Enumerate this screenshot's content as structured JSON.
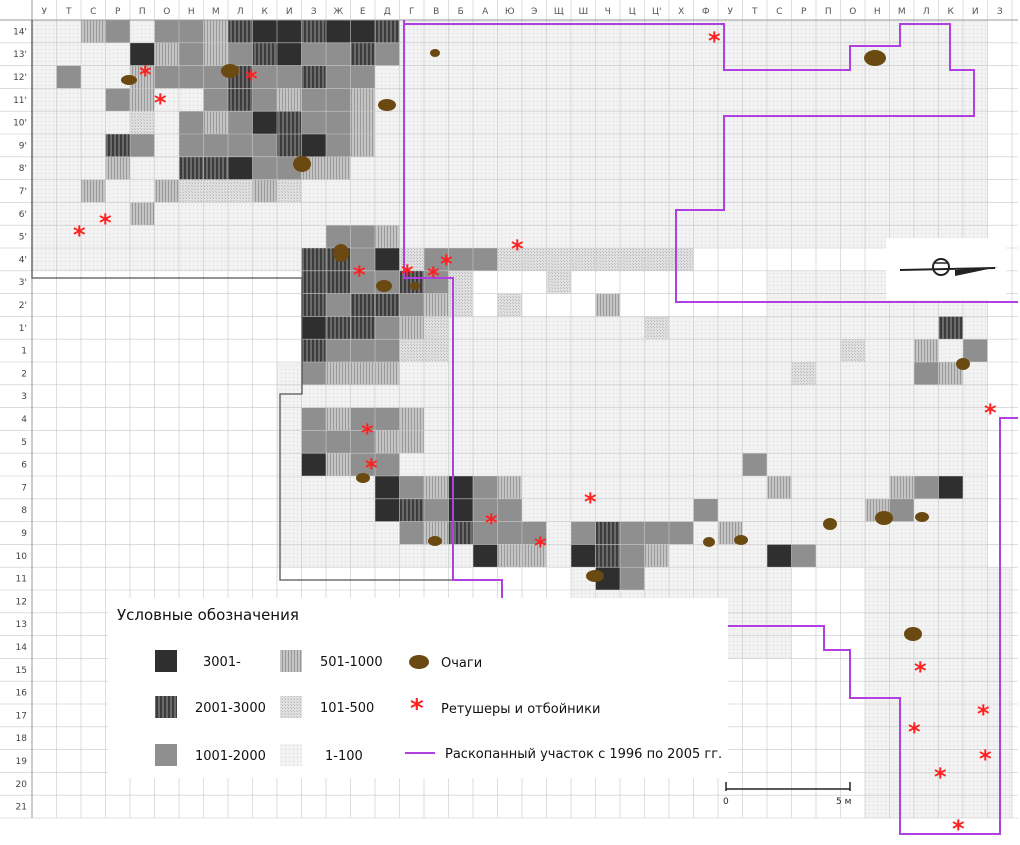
{
  "map": {
    "column_labels": [
      "У",
      "Т",
      "С",
      "Р",
      "П",
      "О",
      "Н",
      "М",
      "Л",
      "К",
      "И",
      "З",
      "Ж",
      "Е",
      "Д",
      "Г",
      "В",
      "Б",
      "А",
      "Ю",
      "Э",
      "Щ",
      "Ш",
      "Ч",
      "Ц",
      "Ц'",
      "Х",
      "Ф",
      "У",
      "Т",
      "С",
      "Р",
      "П",
      "О",
      "Н",
      "М",
      "Л",
      "К",
      "И",
      "З"
    ],
    "row_labels": [
      "14'",
      "13'",
      "12'",
      "11'",
      "10'",
      "9'",
      "8'",
      "7'",
      "6'",
      "5'",
      "4'",
      "3'",
      "2'",
      "1'",
      "1",
      "2",
      "3",
      "4",
      "5",
      "6",
      "7",
      "8",
      "9",
      "10",
      "11",
      "12",
      "13",
      "14",
      "15",
      "16",
      "17",
      "18",
      "19",
      "20",
      "21"
    ],
    "density_classes": [
      {
        "id": "d1",
        "label": "3001-",
        "color": "#2f2f2f"
      },
      {
        "id": "d2",
        "label": "2001-3000",
        "color": "#555555"
      },
      {
        "id": "d3",
        "label": "1001-2000",
        "color": "#8f8f8f"
      },
      {
        "id": "d4",
        "label": "501-1000",
        "color": "#b4b4b4"
      },
      {
        "id": "d5",
        "label": "101-500",
        "color": "#d4d4d4"
      },
      {
        "id": "d6",
        "label": "1-100",
        "color": "#ebebeb"
      }
    ],
    "hearth_color": "#6b4a12",
    "retoucher_color": "#ff2020",
    "excavation_line_color": "#b040e0",
    "old_boundary_color": "#555555"
  },
  "legend": {
    "title": "Условные обозначения",
    "hearth_label": "Очаги",
    "retoucher_label": "Ретушеры и отбойники",
    "excavation_label": "Раскопанный участок с 1996 по 2005 гг."
  },
  "scale_bar": {
    "start_label": "0",
    "end_label": "5 м"
  }
}
